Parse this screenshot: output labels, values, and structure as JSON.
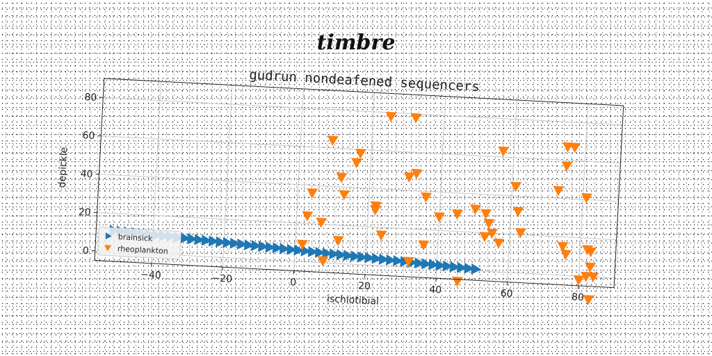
{
  "page_title": "timbre",
  "chart_data": {
    "type": "scatter",
    "title": "gudrun nondeafened sequencers",
    "xlabel": "ischiotibial",
    "ylabel": "depickle",
    "xlim": [
      -56,
      90
    ],
    "ylim": [
      -5,
      90
    ],
    "xticks": [
      -40,
      -20,
      0,
      20,
      40,
      60,
      80
    ],
    "yticks": [
      0,
      20,
      40,
      60,
      80
    ],
    "grid": true,
    "legend_position": "lower-left",
    "series": [
      {
        "name": "brainsick",
        "marker": "triangle-right",
        "color": "#1f77b4",
        "x": [
          -51,
          -49,
          -47,
          -45,
          -43,
          -41,
          -39,
          -37,
          -35,
          -33,
          -31,
          -29,
          -27,
          -25,
          -23,
          -21,
          -19,
          -17,
          -15,
          -13,
          -11,
          -9,
          -7,
          -5,
          -3,
          -1,
          1,
          3,
          5,
          7,
          9,
          11,
          13,
          15,
          17,
          19,
          21,
          23,
          25,
          27,
          29,
          31,
          33,
          35,
          37,
          39,
          41,
          43,
          45,
          47,
          49,
          51
        ],
        "y": [
          11.0,
          10.8,
          10.6,
          10.4,
          10.2,
          10.0,
          9.8,
          9.6,
          9.4,
          9.2,
          9.0,
          8.8,
          8.6,
          8.4,
          8.2,
          8.0,
          7.8,
          7.6,
          7.4,
          7.2,
          7.0,
          6.8,
          6.6,
          6.4,
          6.2,
          6.0,
          5.8,
          5.6,
          5.4,
          5.2,
          5.0,
          4.8,
          4.6,
          4.4,
          4.2,
          4.0,
          3.8,
          3.6,
          3.4,
          3.2,
          3.0,
          2.8,
          2.6,
          2.4,
          2.2,
          2.0,
          1.8,
          1.6,
          1.4,
          1.2,
          1.0,
          0.8
        ]
      },
      {
        "name": "rheoplankton",
        "marker": "triangle-down",
        "color": "#ff7f0e",
        "x": [
          25,
          32,
          9,
          17,
          16,
          12,
          13,
          4,
          3,
          7,
          2,
          12,
          8,
          31,
          33,
          22,
          22,
          24,
          36,
          36,
          40,
          45,
          50,
          53,
          54,
          55,
          53,
          57,
          57,
          61,
          62,
          63,
          73,
          75,
          76,
          75,
          75,
          77,
          81,
          82,
          83,
          83,
          84,
          80,
          82,
          83,
          32,
          46
        ],
        "y": [
          78,
          78,
          64,
          58,
          53,
          45,
          36,
          36,
          24,
          21,
          9,
          12,
          1,
          47,
          49,
          31,
          29,
          16,
          37,
          12,
          27,
          29,
          32,
          30,
          25,
          20,
          18,
          15,
          63,
          45,
          32,
          21,
          44,
          15,
          11,
          57,
          67,
          67,
          41,
          14,
          13,
          5,
          0,
          -2,
          0,
          -12,
          3,
          -6
        ]
      }
    ]
  }
}
